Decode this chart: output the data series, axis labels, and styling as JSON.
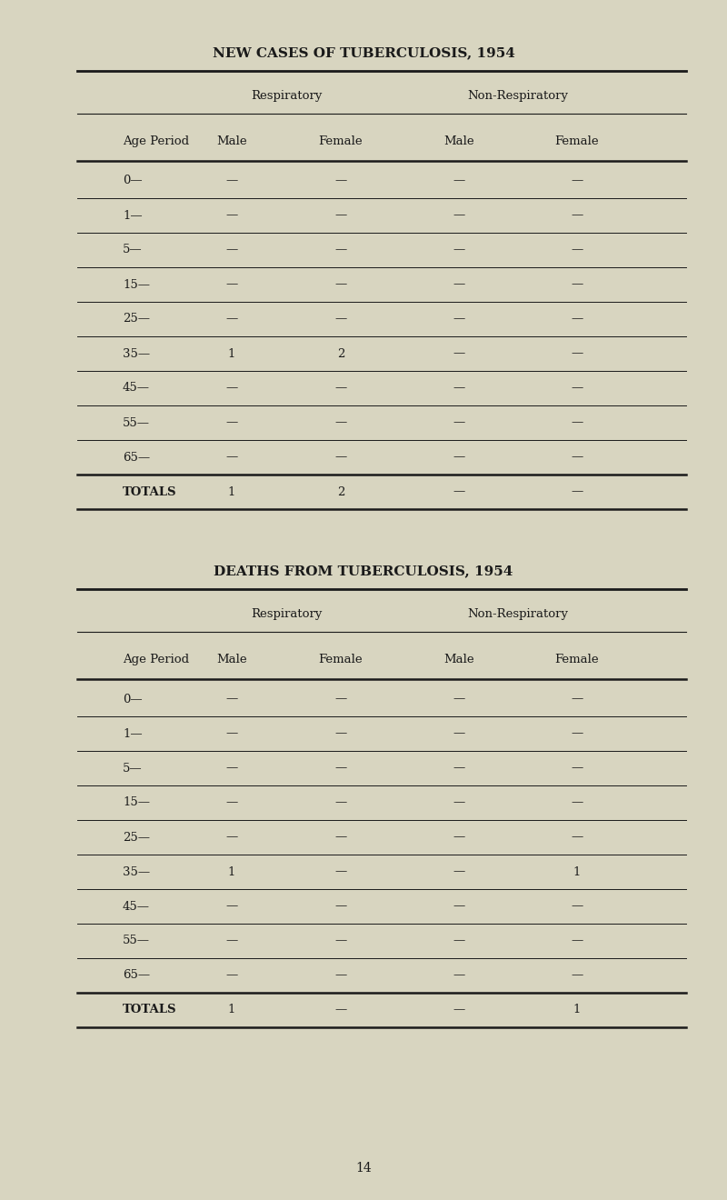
{
  "bg_color": "#d8d5c0",
  "title1": "NEW CASES OF TUBERCULOSIS, 1954",
  "title2": "DEATHS FROM TUBERCULOSIS, 1954",
  "page_number": "14",
  "col_headers_row1": [
    "",
    "Respiratory",
    "",
    "Non-Respiratory"
  ],
  "col_headers_row2": [
    "Age Period",
    "Male",
    "Female",
    "Male",
    "Female"
  ],
  "age_periods": [
    "0—",
    "1—",
    "5—",
    "15—",
    "25—",
    "35—",
    "45—",
    "55—",
    "65—",
    "TOTALS"
  ],
  "table1_data": [
    [
      "—",
      "—",
      "—",
      "—"
    ],
    [
      "—",
      "—",
      "—",
      "—"
    ],
    [
      "—",
      "—",
      "—",
      "—"
    ],
    [
      "—",
      "—",
      "—",
      "—"
    ],
    [
      "—",
      "—",
      "—",
      "—"
    ],
    [
      "1",
      "2",
      "—",
      "—"
    ],
    [
      "—",
      "—",
      "—",
      "—"
    ],
    [
      "—",
      "—",
      "—",
      "—"
    ],
    [
      "—",
      "—",
      "—",
      "—"
    ],
    [
      "1",
      "2",
      "—",
      "—"
    ]
  ],
  "table2_data": [
    [
      "—",
      "—",
      "—",
      "—"
    ],
    [
      "—",
      "—",
      "—",
      "—"
    ],
    [
      "—",
      "—",
      "—",
      "—"
    ],
    [
      "—",
      "—",
      "—",
      "—"
    ],
    [
      "—",
      "—",
      "—",
      "—"
    ],
    [
      "1",
      "—",
      "—",
      "1"
    ],
    [
      "—",
      "—",
      "—",
      "—"
    ],
    [
      "—",
      "—",
      "—",
      "—"
    ],
    [
      "—",
      "—",
      "—",
      "—"
    ],
    [
      "1",
      "—",
      "—",
      "1"
    ]
  ],
  "text_color": "#1a1a1a",
  "line_color": "#1a1a1a",
  "title_fontsize": 11,
  "header_fontsize": 9.5,
  "cell_fontsize": 9.5
}
